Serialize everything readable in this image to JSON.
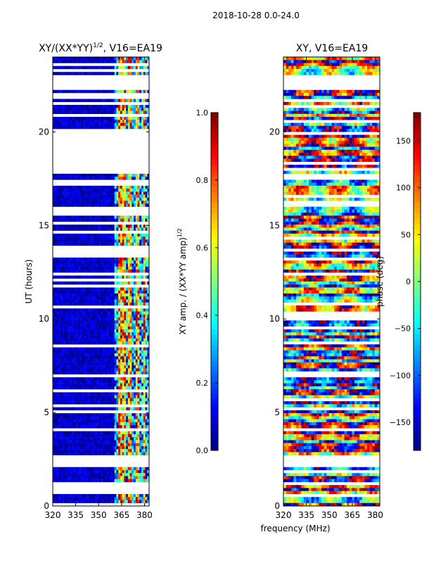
{
  "figure_title": "2018-10-28 0.0-24.0",
  "shared_xlabel": "frequency (MHz)",
  "chart_data": [
    {
      "type": "heatmap",
      "title_main": "XY/(XX*YY)",
      "title_exp": "1/2",
      "title_rest": ", V16=EA19",
      "ylabel": "UT (hours)",
      "xlim": [
        320,
        383
      ],
      "ylim": [
        0,
        24
      ],
      "xticks": [
        320,
        335,
        350,
        365,
        380
      ],
      "yticks": [
        0,
        5,
        10,
        15,
        20
      ],
      "colorbar": {
        "label_main": "XY amp. / (XX*YY amp)",
        "label_exp": "1/2",
        "range": [
          0.0,
          1.0
        ],
        "ticks": [
          "0.0",
          "0.2",
          "0.4",
          "0.6",
          "0.8",
          "1.0"
        ],
        "tick_values": [
          0.0,
          0.2,
          0.4,
          0.6,
          0.8,
          1.0
        ],
        "colormap": "jet"
      },
      "data_gaps_hours": [
        [
          23.0,
          22.3
        ],
        [
          20.2,
          17.8
        ],
        [
          17.4,
          17.3
        ],
        [
          2.8,
          2.1
        ],
        [
          1.1,
          0.6
        ]
      ],
      "bright_freq_bands_mhz": [
        [
          363,
          368
        ],
        [
          369,
          372
        ],
        [
          374,
          377
        ],
        [
          379,
          381
        ]
      ]
    },
    {
      "type": "heatmap",
      "title_main": "XY, V16=EA19",
      "ylabel": "",
      "xlim": [
        320,
        383
      ],
      "ylim": [
        0,
        24
      ],
      "xticks": [
        320,
        335,
        350,
        365,
        380
      ],
      "yticks": [
        0,
        5,
        10,
        15,
        20
      ],
      "colorbar": {
        "label_main": "phase (deg)",
        "range": [
          -180,
          180
        ],
        "ticks": [
          "−150",
          "−100",
          "−50",
          "0",
          "50",
          "100",
          "150"
        ],
        "tick_values": [
          -150,
          -100,
          -50,
          0,
          50,
          100,
          150
        ],
        "colormap": "jet"
      },
      "data_gaps_hours": [
        [
          23.0,
          22.3
        ],
        [
          17.8,
          17.4
        ],
        [
          2.8,
          2.1
        ],
        [
          0.6,
          0.5
        ]
      ]
    }
  ]
}
